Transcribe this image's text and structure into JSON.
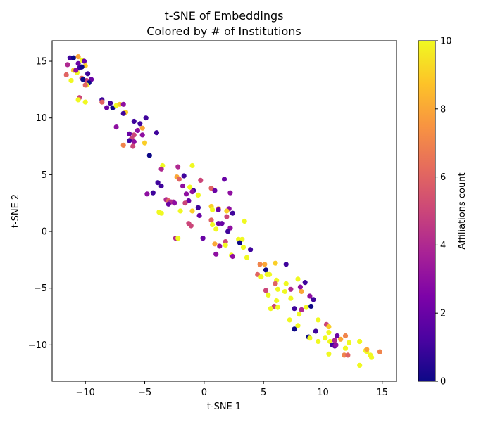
{
  "chart_data": {
    "type": "scatter",
    "title_lines": [
      "t-SNE of Embeddings",
      "Colored by # of Institutions"
    ],
    "xlabel": "t-SNE 1",
    "ylabel": "t-SNE 2",
    "xlim": [
      -12.8,
      16.2
    ],
    "ylim": [
      -13.2,
      16.8
    ],
    "xticks": [
      -10,
      -5,
      0,
      5,
      10,
      15
    ],
    "yticks": [
      -10,
      -5,
      0,
      5,
      10,
      15
    ],
    "colorbar": {
      "label": "Affiliations count",
      "colormap": "plasma",
      "range": [
        0,
        10
      ],
      "ticks": [
        0,
        2,
        4,
        6,
        8,
        10
      ]
    },
    "grid": false,
    "points": [
      [
        -11.3,
        15.3,
        1
      ],
      [
        -11.0,
        15.3,
        0
      ],
      [
        -10.6,
        15.4,
        8
      ],
      [
        -10.3,
        15.1,
        10
      ],
      [
        -10.1,
        15.0,
        2
      ],
      [
        -10.6,
        14.8,
        2
      ],
      [
        -10.0,
        14.6,
        9
      ],
      [
        -11.5,
        14.7,
        4
      ],
      [
        -11.0,
        14.2,
        9
      ],
      [
        -10.7,
        14.0,
        10
      ],
      [
        -10.5,
        14.4,
        1
      ],
      [
        -10.3,
        14.5,
        0
      ],
      [
        -11.6,
        13.8,
        6
      ],
      [
        -10.8,
        14.2,
        3
      ],
      [
        -9.8,
        13.9,
        1
      ],
      [
        -10.3,
        13.5,
        6
      ],
      [
        -9.9,
        13.3,
        5
      ],
      [
        -10.2,
        13.4,
        0
      ],
      [
        -9.5,
        13.4,
        2
      ],
      [
        -11.2,
        13.3,
        10
      ],
      [
        -9.7,
        13.1,
        0
      ],
      [
        -9.9,
        12.9,
        10
      ],
      [
        -10.0,
        12.9,
        6
      ],
      [
        -10.5,
        11.8,
        5
      ],
      [
        -10.6,
        11.6,
        10
      ],
      [
        -10.0,
        11.4,
        10
      ],
      [
        -8.6,
        11.6,
        1
      ],
      [
        -8.6,
        11.4,
        6
      ],
      [
        -8.2,
        10.9,
        2
      ],
      [
        -7.9,
        11.3,
        1
      ],
      [
        -7.7,
        10.9,
        0
      ],
      [
        -7.4,
        11.1,
        10
      ],
      [
        -7.1,
        11.2,
        9
      ],
      [
        -6.8,
        11.2,
        3
      ],
      [
        -6.6,
        10.5,
        9
      ],
      [
        -6.8,
        10.4,
        1
      ],
      [
        -5.9,
        9.7,
        1
      ],
      [
        -5.4,
        9.5,
        1
      ],
      [
        -4.9,
        10.0,
        1
      ],
      [
        -7.4,
        9.2,
        3
      ],
      [
        -5.2,
        9.1,
        8
      ],
      [
        -5.6,
        8.9,
        3
      ],
      [
        -6.3,
        8.6,
        2
      ],
      [
        -4.0,
        8.7,
        1
      ],
      [
        -5.2,
        8.5,
        3
      ],
      [
        -5.9,
        8.5,
        5
      ],
      [
        -6.1,
        8.2,
        5
      ],
      [
        -6.3,
        8.0,
        1
      ],
      [
        -5.9,
        7.9,
        3
      ],
      [
        -6.0,
        7.5,
        5
      ],
      [
        -5.0,
        7.8,
        9
      ],
      [
        -6.8,
        7.6,
        7
      ],
      [
        -4.6,
        6.7,
        0
      ],
      [
        -3.5,
        5.8,
        10
      ],
      [
        -3.6,
        5.5,
        4
      ],
      [
        -2.2,
        5.7,
        4
      ],
      [
        -1.0,
        5.8,
        10
      ],
      [
        -1.7,
        4.9,
        1
      ],
      [
        -0.3,
        4.5,
        5
      ],
      [
        -2.3,
        4.8,
        8
      ],
      [
        -2.1,
        4.6,
        6
      ],
      [
        1.7,
        4.6,
        2
      ],
      [
        -3.9,
        4.3,
        1
      ],
      [
        0.6,
        3.8,
        6
      ],
      [
        -1.8,
        4.0,
        3
      ],
      [
        -1.2,
        3.9,
        10
      ],
      [
        -3.6,
        4.0,
        1
      ],
      [
        -0.9,
        3.6,
        1
      ],
      [
        -1.0,
        3.5,
        3
      ],
      [
        0.9,
        3.6,
        2
      ],
      [
        2.2,
        3.4,
        3
      ],
      [
        -1.5,
        3.3,
        3
      ],
      [
        -4.8,
        3.3,
        3
      ],
      [
        -4.3,
        3.4,
        1
      ],
      [
        -0.5,
        3.2,
        10
      ],
      [
        -3.2,
        2.8,
        4
      ],
      [
        -3.0,
        2.7,
        6
      ],
      [
        -1.3,
        2.7,
        2
      ],
      [
        -2.8,
        2.6,
        4
      ],
      [
        -3.0,
        2.4,
        2
      ],
      [
        -2.6,
        2.6,
        4
      ],
      [
        -2.5,
        2.5,
        3
      ],
      [
        -1.6,
        2.5,
        5
      ],
      [
        -0.5,
        2.1,
        1
      ],
      [
        0.6,
        2.2,
        9
      ],
      [
        0.7,
        1.9,
        10
      ],
      [
        1.2,
        2.0,
        8
      ],
      [
        1.2,
        1.9,
        2
      ],
      [
        2.1,
        2.0,
        3
      ],
      [
        1.9,
        1.8,
        9
      ],
      [
        -1.0,
        1.8,
        9
      ],
      [
        -2.0,
        1.8,
        10
      ],
      [
        -3.8,
        1.7,
        10
      ],
      [
        -3.6,
        1.6,
        10
      ],
      [
        -0.4,
        1.4,
        2
      ],
      [
        1.9,
        1.3,
        5
      ],
      [
        2.4,
        1.6,
        1
      ],
      [
        0.6,
        1.0,
        6
      ],
      [
        1.2,
        0.7,
        2
      ],
      [
        1.5,
        0.7,
        2
      ],
      [
        0.7,
        0.6,
        10
      ],
      [
        -1.3,
        0.7,
        5
      ],
      [
        -1.1,
        0.5,
        5
      ],
      [
        2.2,
        0.3,
        3
      ],
      [
        1.0,
        0.2,
        10
      ],
      [
        2.0,
        0.0,
        1
      ],
      [
        3.4,
        0.9,
        10
      ],
      [
        -0.1,
        -0.6,
        2
      ],
      [
        -2.4,
        -0.6,
        4
      ],
      [
        -2.2,
        -0.6,
        10
      ],
      [
        1.8,
        -0.9,
        5
      ],
      [
        2.9,
        -0.7,
        10
      ],
      [
        3.2,
        -0.7,
        10
      ],
      [
        3.0,
        -1.0,
        0
      ],
      [
        3.3,
        -1.4,
        10
      ],
      [
        3.9,
        -1.6,
        1
      ],
      [
        0.9,
        -1.1,
        8
      ],
      [
        1.3,
        -1.3,
        3
      ],
      [
        1.8,
        -1.2,
        10
      ],
      [
        1.0,
        -2.0,
        3
      ],
      [
        2.3,
        -2.1,
        10
      ],
      [
        2.4,
        -2.2,
        3
      ],
      [
        3.6,
        -2.3,
        10
      ],
      [
        4.7,
        -2.9,
        7
      ],
      [
        5.1,
        -2.9,
        8
      ],
      [
        6.0,
        -2.8,
        9
      ],
      [
        6.9,
        -2.9,
        1
      ],
      [
        4.5,
        -3.8,
        6
      ],
      [
        5.2,
        -3.4,
        0
      ],
      [
        5.5,
        -3.8,
        10
      ],
      [
        5.3,
        -3.8,
        10
      ],
      [
        4.8,
        -4.0,
        10
      ],
      [
        6.1,
        -4.3,
        10
      ],
      [
        7.9,
        -4.2,
        10
      ],
      [
        8.5,
        -4.5,
        1
      ],
      [
        6.0,
        -4.6,
        6
      ],
      [
        6.9,
        -4.6,
        10
      ],
      [
        8.1,
        -4.9,
        3
      ],
      [
        5.2,
        -5.2,
        5
      ],
      [
        6.2,
        -5.1,
        10
      ],
      [
        6.8,
        -5.3,
        10
      ],
      [
        7.3,
        -5.1,
        4
      ],
      [
        8.2,
        -5.3,
        8
      ],
      [
        5.4,
        -5.6,
        10
      ],
      [
        6.1,
        -6.1,
        10
      ],
      [
        7.3,
        -5.9,
        10
      ],
      [
        8.9,
        -5.7,
        3
      ],
      [
        9.2,
        -6.0,
        1
      ],
      [
        5.9,
        -6.6,
        5
      ],
      [
        5.6,
        -6.8,
        10
      ],
      [
        6.2,
        -6.7,
        10
      ],
      [
        7.6,
        -6.8,
        1
      ],
      [
        8.2,
        -6.9,
        4
      ],
      [
        8.6,
        -6.7,
        10
      ],
      [
        9.0,
        -6.6,
        0
      ],
      [
        8.0,
        -7.3,
        10
      ],
      [
        9.6,
        -7.8,
        10
      ],
      [
        7.2,
        -7.8,
        10
      ],
      [
        10.3,
        -8.2,
        5
      ],
      [
        10.5,
        -8.4,
        9
      ],
      [
        7.6,
        -8.6,
        0
      ],
      [
        7.9,
        -8.3,
        10
      ],
      [
        9.4,
        -8.8,
        1
      ],
      [
        10.5,
        -8.9,
        10
      ],
      [
        8.8,
        -9.3,
        0
      ],
      [
        8.9,
        -9.4,
        10
      ],
      [
        10.2,
        -9.4,
        10
      ],
      [
        11.2,
        -9.2,
        2
      ],
      [
        11.5,
        -9.5,
        8
      ],
      [
        11.9,
        -9.2,
        7
      ],
      [
        10.6,
        -9.7,
        10
      ],
      [
        9.6,
        -9.7,
        10
      ],
      [
        11.0,
        -9.6,
        4
      ],
      [
        12.2,
        -9.8,
        10
      ],
      [
        13.1,
        -9.7,
        10
      ],
      [
        10.8,
        -10.0,
        1
      ],
      [
        11.0,
        -10.1,
        2
      ],
      [
        11.1,
        -10.0,
        3
      ],
      [
        11.9,
        -10.3,
        10
      ],
      [
        13.6,
        -10.5,
        10
      ],
      [
        13.7,
        -10.6,
        10
      ],
      [
        14.0,
        -10.9,
        10
      ],
      [
        10.5,
        -10.8,
        10
      ],
      [
        11.8,
        -10.9,
        7
      ],
      [
        12.1,
        -10.9,
        6
      ],
      [
        13.7,
        -10.4,
        8
      ],
      [
        14.1,
        -11.1,
        10
      ],
      [
        14.8,
        -10.6,
        7
      ],
      [
        13.1,
        -11.8,
        10
      ]
    ]
  }
}
